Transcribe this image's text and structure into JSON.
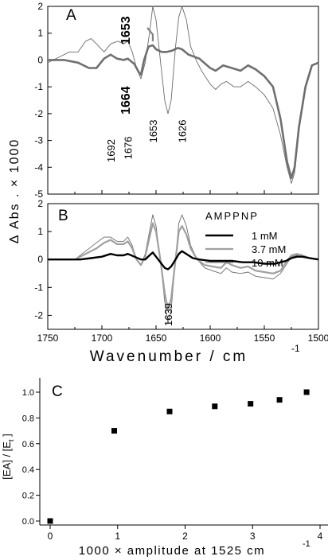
{
  "colors": {
    "black": "#000000",
    "dark_gray": "#707070",
    "light_gray": "#a0a0a0",
    "thin": "#6b6b6b",
    "label_gray": "#808080"
  },
  "chart_data": [
    {
      "panel": "A",
      "type": "line",
      "xlim": [
        1750,
        1500
      ],
      "ylim": [
        -5,
        2
      ],
      "yticks": [
        "-5",
        "-4",
        "-3",
        "-2",
        "-1",
        "0",
        "1",
        "2"
      ],
      "annotations": [
        "1653",
        "1664"
      ],
      "series": [
        {
          "style": "thick-gray",
          "points": [
            [
              1750,
              0.0
            ],
            [
              1735,
              0.0
            ],
            [
              1722,
              -0.1
            ],
            [
              1712,
              -0.3
            ],
            [
              1705,
              -0.3
            ],
            [
              1698,
              0.05
            ],
            [
              1692,
              0.2
            ],
            [
              1686,
              0.05
            ],
            [
              1680,
              0.0
            ],
            [
              1676,
              0.05
            ],
            [
              1670,
              -0.15
            ],
            [
              1666,
              -0.45
            ],
            [
              1664,
              -0.55
            ],
            [
              1661,
              0.0
            ],
            [
              1657,
              0.5
            ],
            [
              1653,
              0.55
            ],
            [
              1650,
              0.4
            ],
            [
              1645,
              0.3
            ],
            [
              1640,
              0.3
            ],
            [
              1635,
              0.35
            ],
            [
              1630,
              0.45
            ],
            [
              1626,
              0.4
            ],
            [
              1620,
              0.2
            ],
            [
              1610,
              0.05
            ],
            [
              1600,
              -0.3
            ],
            [
              1595,
              -0.4
            ],
            [
              1588,
              -0.2
            ],
            [
              1580,
              -0.3
            ],
            [
              1572,
              -0.4
            ],
            [
              1565,
              -0.2
            ],
            [
              1558,
              -0.35
            ],
            [
              1550,
              -0.6
            ],
            [
              1542,
              -1.0
            ],
            [
              1535,
              -2.2
            ],
            [
              1529,
              -3.8
            ],
            [
              1525,
              -4.4
            ],
            [
              1522,
              -4.0
            ],
            [
              1518,
              -2.5
            ],
            [
              1512,
              -1.0
            ],
            [
              1506,
              -0.2
            ],
            [
              1500,
              -0.1
            ]
          ]
        },
        {
          "style": "thin-gray",
          "points": [
            [
              1750,
              -0.1
            ],
            [
              1740,
              0.1
            ],
            [
              1730,
              0.3
            ],
            [
              1722,
              0.3
            ],
            [
              1715,
              0.7
            ],
            [
              1710,
              0.8
            ],
            [
              1705,
              0.6
            ],
            [
              1698,
              0.3
            ],
            [
              1692,
              0.6
            ],
            [
              1685,
              0.7
            ],
            [
              1680,
              0.6
            ],
            [
              1676,
              0.7
            ],
            [
              1672,
              0.3
            ],
            [
              1668,
              -0.3
            ],
            [
              1664,
              -0.7
            ],
            [
              1660,
              -0.1
            ],
            [
              1656,
              1.0
            ],
            [
              1653,
              2.0
            ],
            [
              1650,
              1.5
            ],
            [
              1646,
              0.0
            ],
            [
              1642,
              -1.5
            ],
            [
              1639,
              -2.0
            ],
            [
              1636,
              -1.5
            ],
            [
              1632,
              0.5
            ],
            [
              1629,
              1.6
            ],
            [
              1626,
              2.0
            ],
            [
              1622,
              1.5
            ],
            [
              1618,
              0.5
            ],
            [
              1613,
              0.0
            ],
            [
              1608,
              -0.4
            ],
            [
              1600,
              -0.9
            ],
            [
              1595,
              -1.1
            ],
            [
              1590,
              -0.9
            ],
            [
              1585,
              -0.8
            ],
            [
              1578,
              -1.0
            ],
            [
              1572,
              -1.0
            ],
            [
              1565,
              -0.8
            ],
            [
              1558,
              -1.0
            ],
            [
              1550,
              -1.3
            ],
            [
              1542,
              -1.8
            ],
            [
              1535,
              -2.8
            ],
            [
              1529,
              -4.0
            ],
            [
              1525,
              -4.6
            ],
            [
              1522,
              -4.2
            ],
            [
              1518,
              -2.6
            ],
            [
              1512,
              -1.0
            ],
            [
              1506,
              -0.2
            ],
            [
              1500,
              -0.1
            ]
          ]
        }
      ]
    },
    {
      "panel": "B",
      "type": "line",
      "xlabel": "Wavenumber / cm",
      "xlabel_sup": "-1",
      "ylabel": "Δ Abs . × 1000",
      "xlim": [
        1750,
        1500
      ],
      "ylim": [
        -2.5,
        2
      ],
      "xticks": [
        "1750",
        "1700",
        "1650",
        "1600",
        "1550",
        "1500"
      ],
      "yticks": [
        "-2",
        "-1",
        "0",
        "1",
        "2"
      ],
      "peak_labels": [
        "1692",
        "1676",
        "1653",
        "1626",
        "1639"
      ],
      "legend_title": "AMPPNP",
      "series": [
        {
          "name": "1 mM",
          "style": "thick-black",
          "points": [
            [
              1750,
              0.0
            ],
            [
              1720,
              0.0
            ],
            [
              1710,
              0.05
            ],
            [
              1700,
              0.1
            ],
            [
              1692,
              0.2
            ],
            [
              1686,
              0.15
            ],
            [
              1680,
              0.15
            ],
            [
              1676,
              0.2
            ],
            [
              1670,
              0.1
            ],
            [
              1664,
              0.0
            ],
            [
              1660,
              0.0
            ],
            [
              1656,
              0.15
            ],
            [
              1653,
              0.25
            ],
            [
              1650,
              0.1
            ],
            [
              1646,
              -0.1
            ],
            [
              1642,
              -0.3
            ],
            [
              1639,
              -0.35
            ],
            [
              1636,
              -0.25
            ],
            [
              1632,
              0.0
            ],
            [
              1629,
              0.2
            ],
            [
              1626,
              0.3
            ],
            [
              1622,
              0.2
            ],
            [
              1616,
              0.05
            ],
            [
              1610,
              0.0
            ],
            [
              1600,
              -0.05
            ],
            [
              1590,
              -0.05
            ],
            [
              1580,
              -0.05
            ],
            [
              1570,
              -0.1
            ],
            [
              1560,
              -0.1
            ],
            [
              1550,
              -0.15
            ],
            [
              1540,
              -0.15
            ],
            [
              1535,
              -0.1
            ],
            [
              1530,
              -0.05
            ],
            [
              1525,
              0.05
            ],
            [
              1520,
              0.1
            ],
            [
              1515,
              0.1
            ],
            [
              1508,
              0.05
            ],
            [
              1500,
              0.0
            ]
          ]
        },
        {
          "name": "3.7 mM",
          "style": "light-gray",
          "points": [
            [
              1750,
              0.0
            ],
            [
              1725,
              0.0
            ],
            [
              1715,
              0.2
            ],
            [
              1705,
              0.4
            ],
            [
              1698,
              0.6
            ],
            [
              1692,
              0.7
            ],
            [
              1686,
              0.55
            ],
            [
              1680,
              0.55
            ],
            [
              1676,
              0.65
            ],
            [
              1672,
              0.4
            ],
            [
              1668,
              0.0
            ],
            [
              1664,
              -0.2
            ],
            [
              1660,
              0.1
            ],
            [
              1656,
              0.8
            ],
            [
              1653,
              1.3
            ],
            [
              1650,
              1.0
            ],
            [
              1646,
              0.0
            ],
            [
              1642,
              -1.2
            ],
            [
              1639,
              -1.8
            ],
            [
              1636,
              -1.4
            ],
            [
              1632,
              0.0
            ],
            [
              1629,
              1.0
            ],
            [
              1626,
              1.2
            ],
            [
              1622,
              0.9
            ],
            [
              1618,
              0.4
            ],
            [
              1612,
              0.0
            ],
            [
              1605,
              -0.2
            ],
            [
              1598,
              -0.25
            ],
            [
              1590,
              -0.3
            ],
            [
              1585,
              -0.1
            ],
            [
              1580,
              -0.2
            ],
            [
              1572,
              -0.3
            ],
            [
              1565,
              -0.25
            ],
            [
              1558,
              -0.4
            ],
            [
              1550,
              -0.45
            ],
            [
              1542,
              -0.5
            ],
            [
              1535,
              -0.4
            ],
            [
              1530,
              -0.1
            ],
            [
              1525,
              0.15
            ],
            [
              1520,
              0.2
            ],
            [
              1515,
              0.15
            ],
            [
              1508,
              0.05
            ],
            [
              1500,
              0.0
            ]
          ]
        },
        {
          "name": "10 mM",
          "style": "thin-gray",
          "points": [
            [
              1750,
              0.0
            ],
            [
              1725,
              0.0
            ],
            [
              1715,
              0.3
            ],
            [
              1705,
              0.6
            ],
            [
              1698,
              0.8
            ],
            [
              1692,
              0.8
            ],
            [
              1686,
              0.65
            ],
            [
              1680,
              0.65
            ],
            [
              1676,
              0.8
            ],
            [
              1672,
              0.5
            ],
            [
              1668,
              0.0
            ],
            [
              1664,
              -0.2
            ],
            [
              1660,
              0.2
            ],
            [
              1656,
              1.0
            ],
            [
              1653,
              1.6
            ],
            [
              1650,
              1.2
            ],
            [
              1646,
              0.0
            ],
            [
              1642,
              -1.5
            ],
            [
              1639,
              -2.3
            ],
            [
              1636,
              -1.8
            ],
            [
              1632,
              0.0
            ],
            [
              1629,
              1.3
            ],
            [
              1626,
              1.6
            ],
            [
              1622,
              1.2
            ],
            [
              1618,
              0.5
            ],
            [
              1612,
              0.0
            ],
            [
              1605,
              -0.3
            ],
            [
              1598,
              -0.4
            ],
            [
              1590,
              -0.5
            ],
            [
              1585,
              -0.3
            ],
            [
              1580,
              -0.45
            ],
            [
              1572,
              -0.5
            ],
            [
              1565,
              -0.45
            ],
            [
              1558,
              -0.6
            ],
            [
              1550,
              -0.65
            ],
            [
              1542,
              -0.7
            ],
            [
              1535,
              -0.5
            ],
            [
              1530,
              -0.2
            ],
            [
              1525,
              0.1
            ],
            [
              1520,
              0.15
            ],
            [
              1515,
              0.1
            ],
            [
              1508,
              0.05
            ],
            [
              1500,
              0.0
            ]
          ]
        }
      ]
    },
    {
      "panel": "C",
      "type": "scatter",
      "xlabel": "1000 × amplitude at 1525 cm",
      "xlabel_sup": "-1",
      "ylabel": "[EA] / [E",
      "ylabel_sub": "t",
      "ylabel_end": " ]",
      "xlim": [
        -0.2,
        4.2
      ],
      "ylim": [
        -0.05,
        1.15
      ],
      "xticks": [
        "0",
        "1",
        "2",
        "3",
        "4"
      ],
      "yticks": [
        "0.0",
        "0.2",
        "0.4",
        "0.6",
        "0.8",
        "1.0"
      ],
      "x": [
        0,
        0.95,
        1.77,
        2.44,
        2.97,
        3.4,
        3.8
      ],
      "y": [
        0.0,
        0.7,
        0.85,
        0.89,
        0.91,
        0.94,
        1.0
      ]
    }
  ]
}
